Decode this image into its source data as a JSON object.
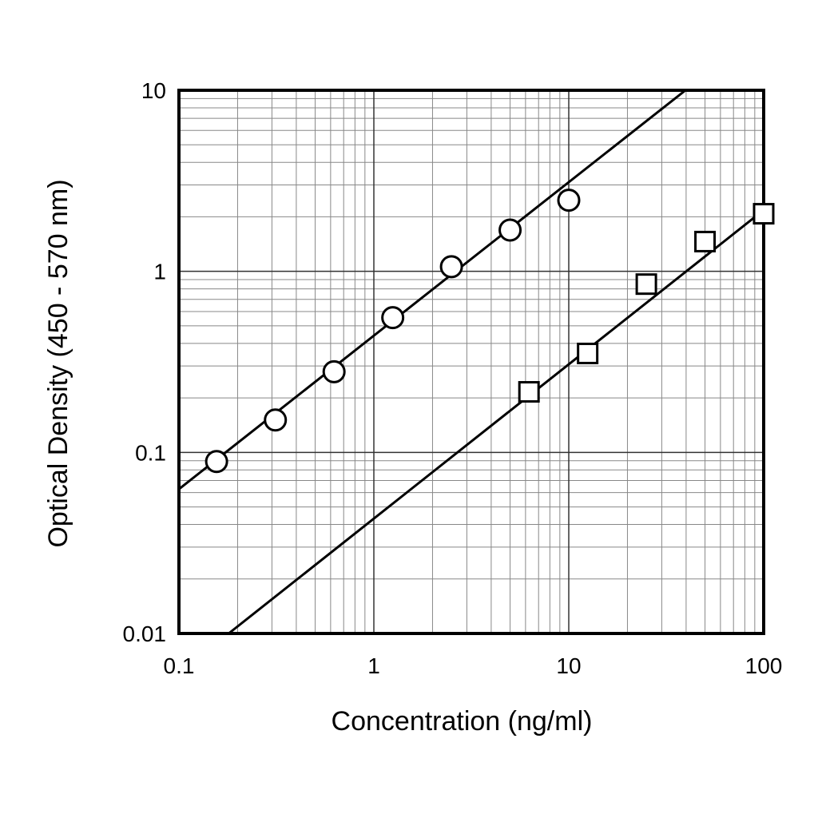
{
  "chart_data": {
    "type": "scatter",
    "xlabel": "Concentration (ng/ml)",
    "ylabel": "Optical Density (450 - 570 nm)",
    "xscale": "log",
    "yscale": "log",
    "grid": true,
    "minor_grid": true,
    "xlim": [
      0.1,
      100
    ],
    "xticks": [
      0.1,
      1,
      10,
      100
    ],
    "ylim": [
      0.01,
      10
    ],
    "yticks": [
      0.01,
      0.1,
      1,
      10
    ],
    "series": [
      {
        "marker": "circle",
        "color": "#000000",
        "x": [
          0.156,
          0.3125,
          0.625,
          1.25,
          2.5,
          5,
          10
        ],
        "values": [
          0.089,
          0.151,
          0.279,
          0.555,
          1.06,
          1.69,
          2.47
        ]
      },
      {
        "marker": "square",
        "color": "#000000",
        "x": [
          6.25,
          12.5,
          25,
          50,
          100
        ],
        "values": [
          0.216,
          0.352,
          0.85,
          1.46,
          2.08
        ]
      },
      {
        "marker": "line",
        "color": "#000000",
        "x": [
          0.1,
          39.7
        ],
        "values": [
          0.0627,
          10
        ]
      },
      {
        "marker": "line",
        "color": "#000000",
        "x": [
          0.18,
          100
        ],
        "values": [
          0.01,
          2.18
        ]
      }
    ]
  }
}
